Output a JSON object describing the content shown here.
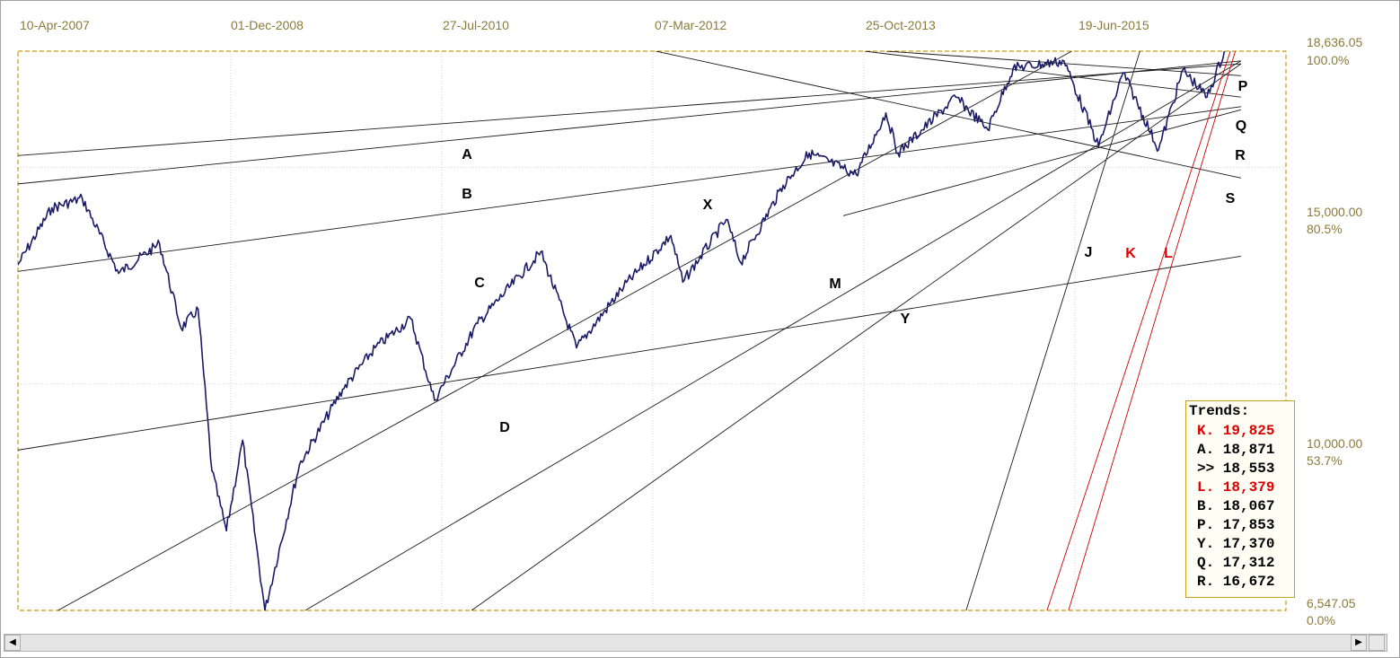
{
  "chart_data": {
    "type": "line",
    "x_axis": {
      "tick_labels": [
        "10-Apr-2007",
        "01-Dec-2008",
        "27-Jul-2010",
        "07-Mar-2012",
        "25-Oct-2013",
        "19-Jun-2015"
      ]
    },
    "y_axis": {
      "min": 6547.05,
      "max": 18636.05,
      "ticks": [
        {
          "value": 18636.05,
          "label": "18,636.05",
          "pct": "100.0%"
        },
        {
          "value": 15000,
          "label": "15,000.00",
          "pct": "80.5%"
        },
        {
          "value": 10000,
          "label": "10,000.00",
          "pct": "53.7%"
        },
        {
          "value": 6547.05,
          "label": "6,547.05",
          "pct": "0.0%"
        }
      ]
    },
    "series": [
      {
        "color": "#1a1a66",
        "points": [
          [
            "2007-04-10",
            12500
          ],
          [
            "2007-07-15",
            13900
          ],
          [
            "2007-10-09",
            14150
          ],
          [
            "2008-01-20",
            12300
          ],
          [
            "2008-05-15",
            13000
          ],
          [
            "2008-07-15",
            11100
          ],
          [
            "2008-09-01",
            11500
          ],
          [
            "2008-10-10",
            8500
          ],
          [
            "2008-11-20",
            7600
          ],
          [
            "2009-01-05",
            9000
          ],
          [
            "2009-03-09",
            6547
          ],
          [
            "2009-06-15",
            8600
          ],
          [
            "2009-10-15",
            9900
          ],
          [
            "2010-01-15",
            10700
          ],
          [
            "2010-04-26",
            11300
          ],
          [
            "2010-07-02",
            9700
          ],
          [
            "2010-11-01",
            11200
          ],
          [
            "2011-04-29",
            12800
          ],
          [
            "2011-08-08",
            10700
          ],
          [
            "2011-12-20",
            12000
          ],
          [
            "2012-05-01",
            13200
          ],
          [
            "2012-06-04",
            12100
          ],
          [
            "2012-10-05",
            13600
          ],
          [
            "2012-11-15",
            12550
          ],
          [
            "2013-03-15",
            14500
          ],
          [
            "2013-05-28",
            15400
          ],
          [
            "2013-10-08",
            14800
          ],
          [
            "2013-12-31",
            16600
          ],
          [
            "2014-02-03",
            15400
          ],
          [
            "2014-07-17",
            17100
          ],
          [
            "2014-10-15",
            16100
          ],
          [
            "2014-12-26",
            18050
          ],
          [
            "2015-05-19",
            18300
          ],
          [
            "2015-08-25",
            15600
          ],
          [
            "2015-11-03",
            17900
          ],
          [
            "2016-02-11",
            15500
          ],
          [
            "2016-04-20",
            18000
          ],
          [
            "2016-06-27",
            17100
          ],
          [
            "2016-08-15",
            18636
          ]
        ]
      }
    ],
    "trend_lines": [
      {
        "label": "A",
        "label_color": "#000000",
        "color": "#1a1a1a",
        "start": [
          "2007-03-01",
          15300
        ],
        "end": [
          "2016-10-01",
          18200
        ]
      },
      {
        "label": "B",
        "label_color": "#000000",
        "color": "#1a1a1a",
        "start": [
          "2007-03-01",
          14500
        ],
        "end": [
          "2016-10-01",
          18300
        ]
      },
      {
        "label": "C",
        "label_color": "#000000",
        "color": "#1a1a1a",
        "start": [
          "2007-03-01",
          12300
        ],
        "end": [
          "2016-10-01",
          16800
        ]
      },
      {
        "label": "D",
        "label_color": "#000000",
        "color": "#1a1a1a",
        "start": [
          "2007-03-01",
          8800
        ],
        "end": [
          "2016-10-01",
          12700
        ]
      },
      {
        "label": "X",
        "label_color": "#000000",
        "color": "#1a1a1a",
        "start": [
          "2007-08-01",
          6547
        ],
        "end": [
          "2015-06-10",
          18636
        ]
      },
      {
        "label": "M",
        "label_color": "#000000",
        "color": "#1a1a1a",
        "start": [
          "2009-07-01",
          6547
        ],
        "end": [
          "2016-10-01",
          18300
        ]
      },
      {
        "label": "Y",
        "label_color": "#000000",
        "color": "#1a1a1a",
        "start": [
          "2010-10-15",
          6547
        ],
        "end": [
          "2016-10-01",
          18200
        ]
      },
      {
        "label": "P",
        "label_color": "#000000",
        "color": "#1a1a1a",
        "start": [
          "2014-01-01",
          18636
        ],
        "end": [
          "2016-10-01",
          17800
        ]
      },
      {
        "label": "Q",
        "label_color": "#000000",
        "color": "#1a1a1a",
        "start": [
          "2013-11-01",
          18636
        ],
        "end": [
          "2016-10-01",
          17100
        ]
      },
      {
        "label": "R",
        "label_color": "#000000",
        "color": "#1a1a1a",
        "start": [
          "2013-09-01",
          13700
        ],
        "end": [
          "2016-10-01",
          16700
        ]
      },
      {
        "label": "S",
        "label_color": "#000000",
        "color": "#1a1a1a",
        "start": [
          "2012-03-20",
          18636
        ],
        "end": [
          "2016-10-01",
          14700
        ]
      },
      {
        "label": "J",
        "label_color": "#000000",
        "color": "#1a1a1a",
        "start": [
          "2014-08-15",
          6547
        ],
        "end": [
          "2015-12-20",
          18636
        ]
      },
      {
        "label": "K",
        "label_color": "#dd0000",
        "color": "#cc0000",
        "start": [
          "2015-04-01",
          6547
        ],
        "end": [
          "2016-09-01",
          18636
        ]
      },
      {
        "label": "L",
        "label_color": "#dd0000",
        "color": "#cc0000",
        "start": [
          "2015-06-01",
          6547
        ],
        "end": [
          "2016-09-15",
          18636
        ]
      }
    ],
    "grid": true
  },
  "trends_box": {
    "title": "Trends:",
    "rows": [
      {
        "text": "K. 19,825",
        "color": "#dd0000"
      },
      {
        "text": "A. 18,871",
        "color": "#000000"
      },
      {
        "text": ">> 18,553",
        "color": "#000000"
      },
      {
        "text": "L. 18,379",
        "color": "#dd0000"
      },
      {
        "text": "B. 18,067",
        "color": "#000000"
      },
      {
        "text": "P. 17,853",
        "color": "#000000"
      },
      {
        "text": "Y. 17,370",
        "color": "#000000"
      },
      {
        "text": "Q. 17,312",
        "color": "#000000"
      },
      {
        "text": "R. 16,672",
        "color": "#000000"
      }
    ]
  },
  "scrollbar": {
    "left_icon": "arrow-left-icon",
    "right_icon": "arrow-right-icon"
  }
}
